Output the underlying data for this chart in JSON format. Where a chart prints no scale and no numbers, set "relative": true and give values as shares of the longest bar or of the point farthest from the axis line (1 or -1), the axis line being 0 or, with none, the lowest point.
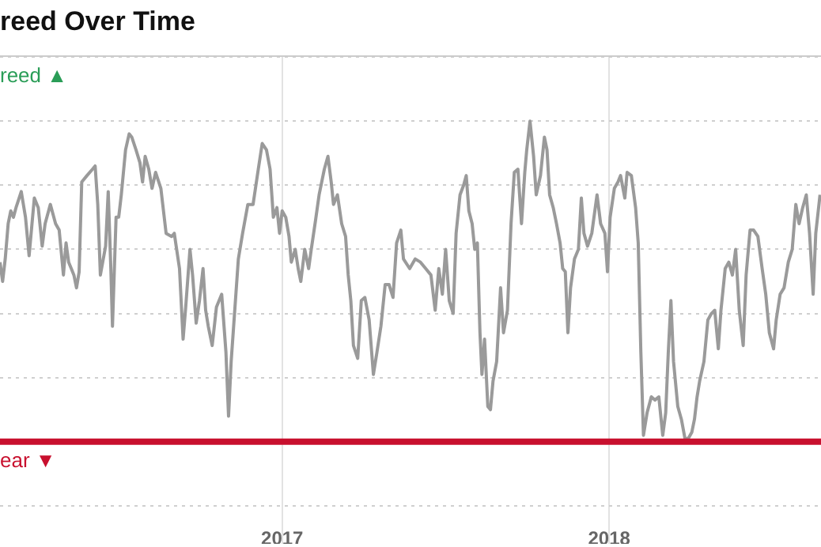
{
  "chart_data": {
    "type": "line",
    "title": "reed Over Time",
    "relative": true,
    "grid": true,
    "marker": "none",
    "legend": false,
    "xlim": [
      2016.137,
      2018.648
    ],
    "xticks": [
      2017,
      2018
    ],
    "annotations": [
      "reed ▲"
    ],
    "ref_lines": [
      {
        "axis": "y",
        "value": 0,
        "label": "ear ▼",
        "color": "#c8102e"
      }
    ],
    "series": [
      {
        "color": "#9a9a9a",
        "x": [
          2016.137,
          2016.145,
          2016.153,
          2016.162,
          2016.17,
          2016.178,
          2016.186,
          2016.202,
          2016.215,
          2016.226,
          2016.242,
          2016.254,
          2016.266,
          2016.275,
          2016.291,
          2016.307,
          2016.318,
          2016.331,
          2016.339,
          2016.347,
          2016.355,
          2016.363,
          2016.371,
          2016.379,
          2016.387,
          2016.403,
          2016.42,
          2016.428,
          2016.436,
          2016.444,
          2016.46,
          2016.468,
          2016.476,
          2016.481,
          2016.492,
          2016.5,
          2016.508,
          2016.521,
          2016.532,
          2016.54,
          2016.553,
          2016.565,
          2016.573,
          2016.581,
          2016.592,
          2016.602,
          2016.613,
          2016.629,
          2016.645,
          2016.662,
          2016.67,
          2016.686,
          2016.697,
          2016.705,
          2016.718,
          2016.726,
          2016.737,
          2016.747,
          2016.758,
          2016.766,
          2016.774,
          2016.786,
          2016.799,
          2016.815,
          2016.828,
          2016.836,
          2016.844,
          2016.855,
          2016.866,
          2016.879,
          2016.895,
          2016.911,
          2016.927,
          2016.939,
          2016.952,
          2016.963,
          2016.973,
          2016.984,
          2016.992,
          2017.0,
          2017.011,
          2017.021,
          2017.028,
          2017.04,
          2017.049,
          2017.057,
          2017.069,
          2017.081,
          2017.089,
          2017.102,
          2017.113,
          2017.129,
          2017.14,
          2017.15,
          2017.157,
          2017.169,
          2017.182,
          2017.194,
          2017.202,
          2017.21,
          2017.218,
          2017.231,
          2017.242,
          2017.253,
          2017.266,
          2017.279,
          2017.29,
          2017.302,
          2017.315,
          2017.327,
          2017.339,
          2017.35,
          2017.363,
          2017.371,
          2017.39,
          2017.407,
          2017.423,
          2017.439,
          2017.455,
          2017.468,
          2017.479,
          2017.49,
          2017.5,
          2017.511,
          2017.523,
          2017.532,
          2017.544,
          2017.555,
          2017.563,
          2017.571,
          2017.581,
          2017.589,
          2017.597,
          2017.605,
          2017.611,
          2017.619,
          2017.629,
          2017.637,
          2017.645,
          2017.656,
          2017.668,
          2017.677,
          2017.689,
          2017.7,
          2017.71,
          2017.721,
          2017.732,
          2017.742,
          2017.748,
          2017.758,
          2017.769,
          2017.777,
          2017.79,
          2017.802,
          2017.81,
          2017.818,
          2017.829,
          2017.839,
          2017.85,
          2017.858,
          2017.866,
          2017.874,
          2017.882,
          2017.894,
          2017.906,
          2017.915,
          2017.923,
          2017.934,
          2017.947,
          2017.963,
          2017.974,
          2017.987,
          2017.995,
          2018.003,
          2018.016,
          2018.027,
          2018.035,
          2018.048,
          2018.055,
          2018.068,
          2018.081,
          2018.089,
          2018.097,
          2018.105,
          2018.116,
          2018.129,
          2018.14,
          2018.152,
          2018.164,
          2018.173,
          2018.181,
          2018.189,
          2018.197,
          2018.21,
          2018.221,
          2018.232,
          2018.242,
          2018.253,
          2018.261,
          2018.269,
          2018.277,
          2018.29,
          2018.302,
          2018.313,
          2018.323,
          2018.334,
          2018.342,
          2018.355,
          2018.366,
          2018.377,
          2018.387,
          2018.398,
          2018.41,
          2018.419,
          2018.431,
          2018.442,
          2018.455,
          2018.468,
          2018.479,
          2018.49,
          2018.503,
          2018.511,
          2018.523,
          2018.535,
          2018.548,
          2018.56,
          2018.571,
          2018.581,
          2018.592,
          2018.603,
          2018.613,
          2018.624,
          2018.632,
          2018.645
        ],
        "values": [
          0.56,
          0.5,
          0.57,
          0.68,
          0.72,
          0.7,
          0.73,
          0.78,
          0.7,
          0.58,
          0.76,
          0.73,
          0.61,
          0.68,
          0.74,
          0.68,
          0.66,
          0.52,
          0.62,
          0.56,
          0.54,
          0.52,
          0.48,
          0.53,
          0.81,
          0.83,
          0.85,
          0.86,
          0.74,
          0.52,
          0.61,
          0.78,
          0.54,
          0.36,
          0.7,
          0.7,
          0.77,
          0.91,
          0.96,
          0.95,
          0.91,
          0.87,
          0.81,
          0.89,
          0.85,
          0.79,
          0.84,
          0.79,
          0.65,
          0.64,
          0.65,
          0.54,
          0.32,
          0.42,
          0.6,
          0.52,
          0.37,
          0.44,
          0.54,
          0.41,
          0.36,
          0.3,
          0.42,
          0.46,
          0.28,
          0.08,
          0.25,
          0.41,
          0.57,
          0.65,
          0.74,
          0.74,
          0.85,
          0.93,
          0.91,
          0.85,
          0.7,
          0.73,
          0.65,
          0.72,
          0.7,
          0.64,
          0.56,
          0.6,
          0.54,
          0.5,
          0.6,
          0.54,
          0.6,
          0.69,
          0.77,
          0.85,
          0.89,
          0.81,
          0.74,
          0.77,
          0.68,
          0.64,
          0.52,
          0.44,
          0.3,
          0.26,
          0.44,
          0.45,
          0.38,
          0.21,
          0.28,
          0.36,
          0.49,
          0.49,
          0.45,
          0.62,
          0.66,
          0.57,
          0.54,
          0.57,
          0.56,
          0.54,
          0.52,
          0.41,
          0.54,
          0.46,
          0.6,
          0.44,
          0.4,
          0.65,
          0.77,
          0.8,
          0.83,
          0.72,
          0.68,
          0.6,
          0.62,
          0.34,
          0.21,
          0.32,
          0.11,
          0.1,
          0.19,
          0.25,
          0.48,
          0.34,
          0.41,
          0.68,
          0.84,
          0.85,
          0.68,
          0.84,
          0.91,
          1.0,
          0.89,
          0.77,
          0.83,
          0.95,
          0.91,
          0.77,
          0.73,
          0.68,
          0.62,
          0.54,
          0.53,
          0.34,
          0.48,
          0.57,
          0.6,
          0.76,
          0.65,
          0.61,
          0.65,
          0.77,
          0.68,
          0.65,
          0.53,
          0.7,
          0.79,
          0.81,
          0.83,
          0.76,
          0.84,
          0.83,
          0.73,
          0.62,
          0.28,
          0.02,
          0.09,
          0.14,
          0.13,
          0.14,
          0.02,
          0.09,
          0.28,
          0.44,
          0.25,
          0.11,
          0.07,
          0.01,
          0.01,
          0.03,
          0.07,
          0.14,
          0.19,
          0.25,
          0.38,
          0.4,
          0.41,
          0.29,
          0.41,
          0.54,
          0.56,
          0.52,
          0.6,
          0.41,
          0.3,
          0.52,
          0.66,
          0.66,
          0.64,
          0.54,
          0.46,
          0.34,
          0.29,
          0.38,
          0.46,
          0.48,
          0.56,
          0.6,
          0.74,
          0.68,
          0.73,
          0.77,
          0.65,
          0.46,
          0.65,
          0.77
        ]
      }
    ]
  }
}
